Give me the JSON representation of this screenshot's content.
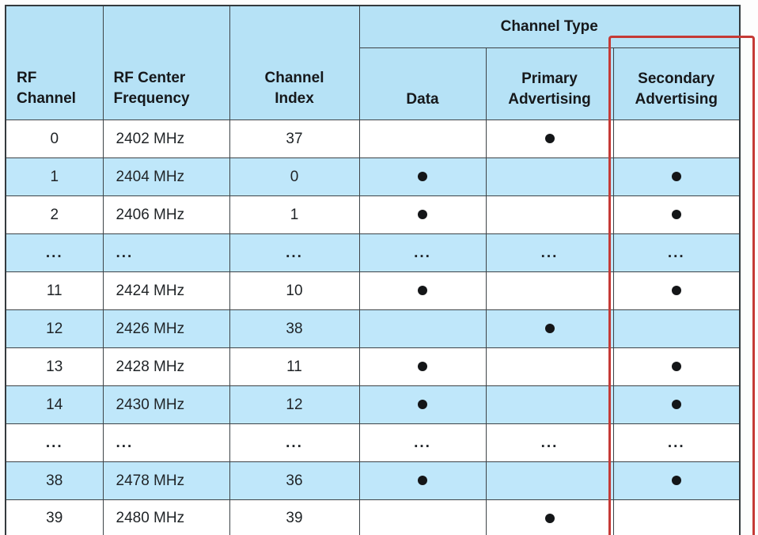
{
  "table": {
    "headers": {
      "rf_channel": "RF\nChannel",
      "rf_center_frequency": "RF Center\nFrequency",
      "channel_index": "Channel\nIndex",
      "channel_type": "Channel Type",
      "data": "Data",
      "primary_advertising": "Primary\nAdvertising",
      "secondary_advertising": "Secondary\nAdvertising"
    },
    "rows": [
      {
        "rf": "0",
        "freq": "2402 MHz",
        "index": "37",
        "data": "",
        "primary": "dot",
        "secondary": ""
      },
      {
        "rf": "1",
        "freq": "2404 MHz",
        "index": "0",
        "data": "dot",
        "primary": "",
        "secondary": "dot"
      },
      {
        "rf": "2",
        "freq": "2406 MHz",
        "index": "1",
        "data": "dot",
        "primary": "",
        "secondary": "dot"
      },
      {
        "rf": "...",
        "freq": "...",
        "index": "...",
        "data": "...",
        "primary": "...",
        "secondary": "..."
      },
      {
        "rf": "11",
        "freq": "2424 MHz",
        "index": "10",
        "data": "dot",
        "primary": "",
        "secondary": "dot"
      },
      {
        "rf": "12",
        "freq": "2426 MHz",
        "index": "38",
        "data": "",
        "primary": "dot",
        "secondary": ""
      },
      {
        "rf": "13",
        "freq": "2428 MHz",
        "index": "11",
        "data": "dot",
        "primary": "",
        "secondary": "dot"
      },
      {
        "rf": "14",
        "freq": "2430 MHz",
        "index": "12",
        "data": "dot",
        "primary": "",
        "secondary": "dot"
      },
      {
        "rf": "...",
        "freq": "...",
        "index": "...",
        "data": "...",
        "primary": "...",
        "secondary": "..."
      },
      {
        "rf": "38",
        "freq": "2478 MHz",
        "index": "36",
        "data": "dot",
        "primary": "",
        "secondary": "dot"
      },
      {
        "rf": "39",
        "freq": "2480 MHz",
        "index": "39",
        "data": "",
        "primary": "dot",
        "secondary": ""
      }
    ],
    "marker_symbol": "dot"
  },
  "colors": {
    "header_blue": "#b6e2f6",
    "row_blue": "#bfe7fa",
    "row_white": "#ffffff",
    "border": "#3d4347",
    "highlight_red": "#c53a36",
    "dot_black": "#141618"
  },
  "annotation": {
    "highlighted_column": "Secondary Advertising"
  }
}
